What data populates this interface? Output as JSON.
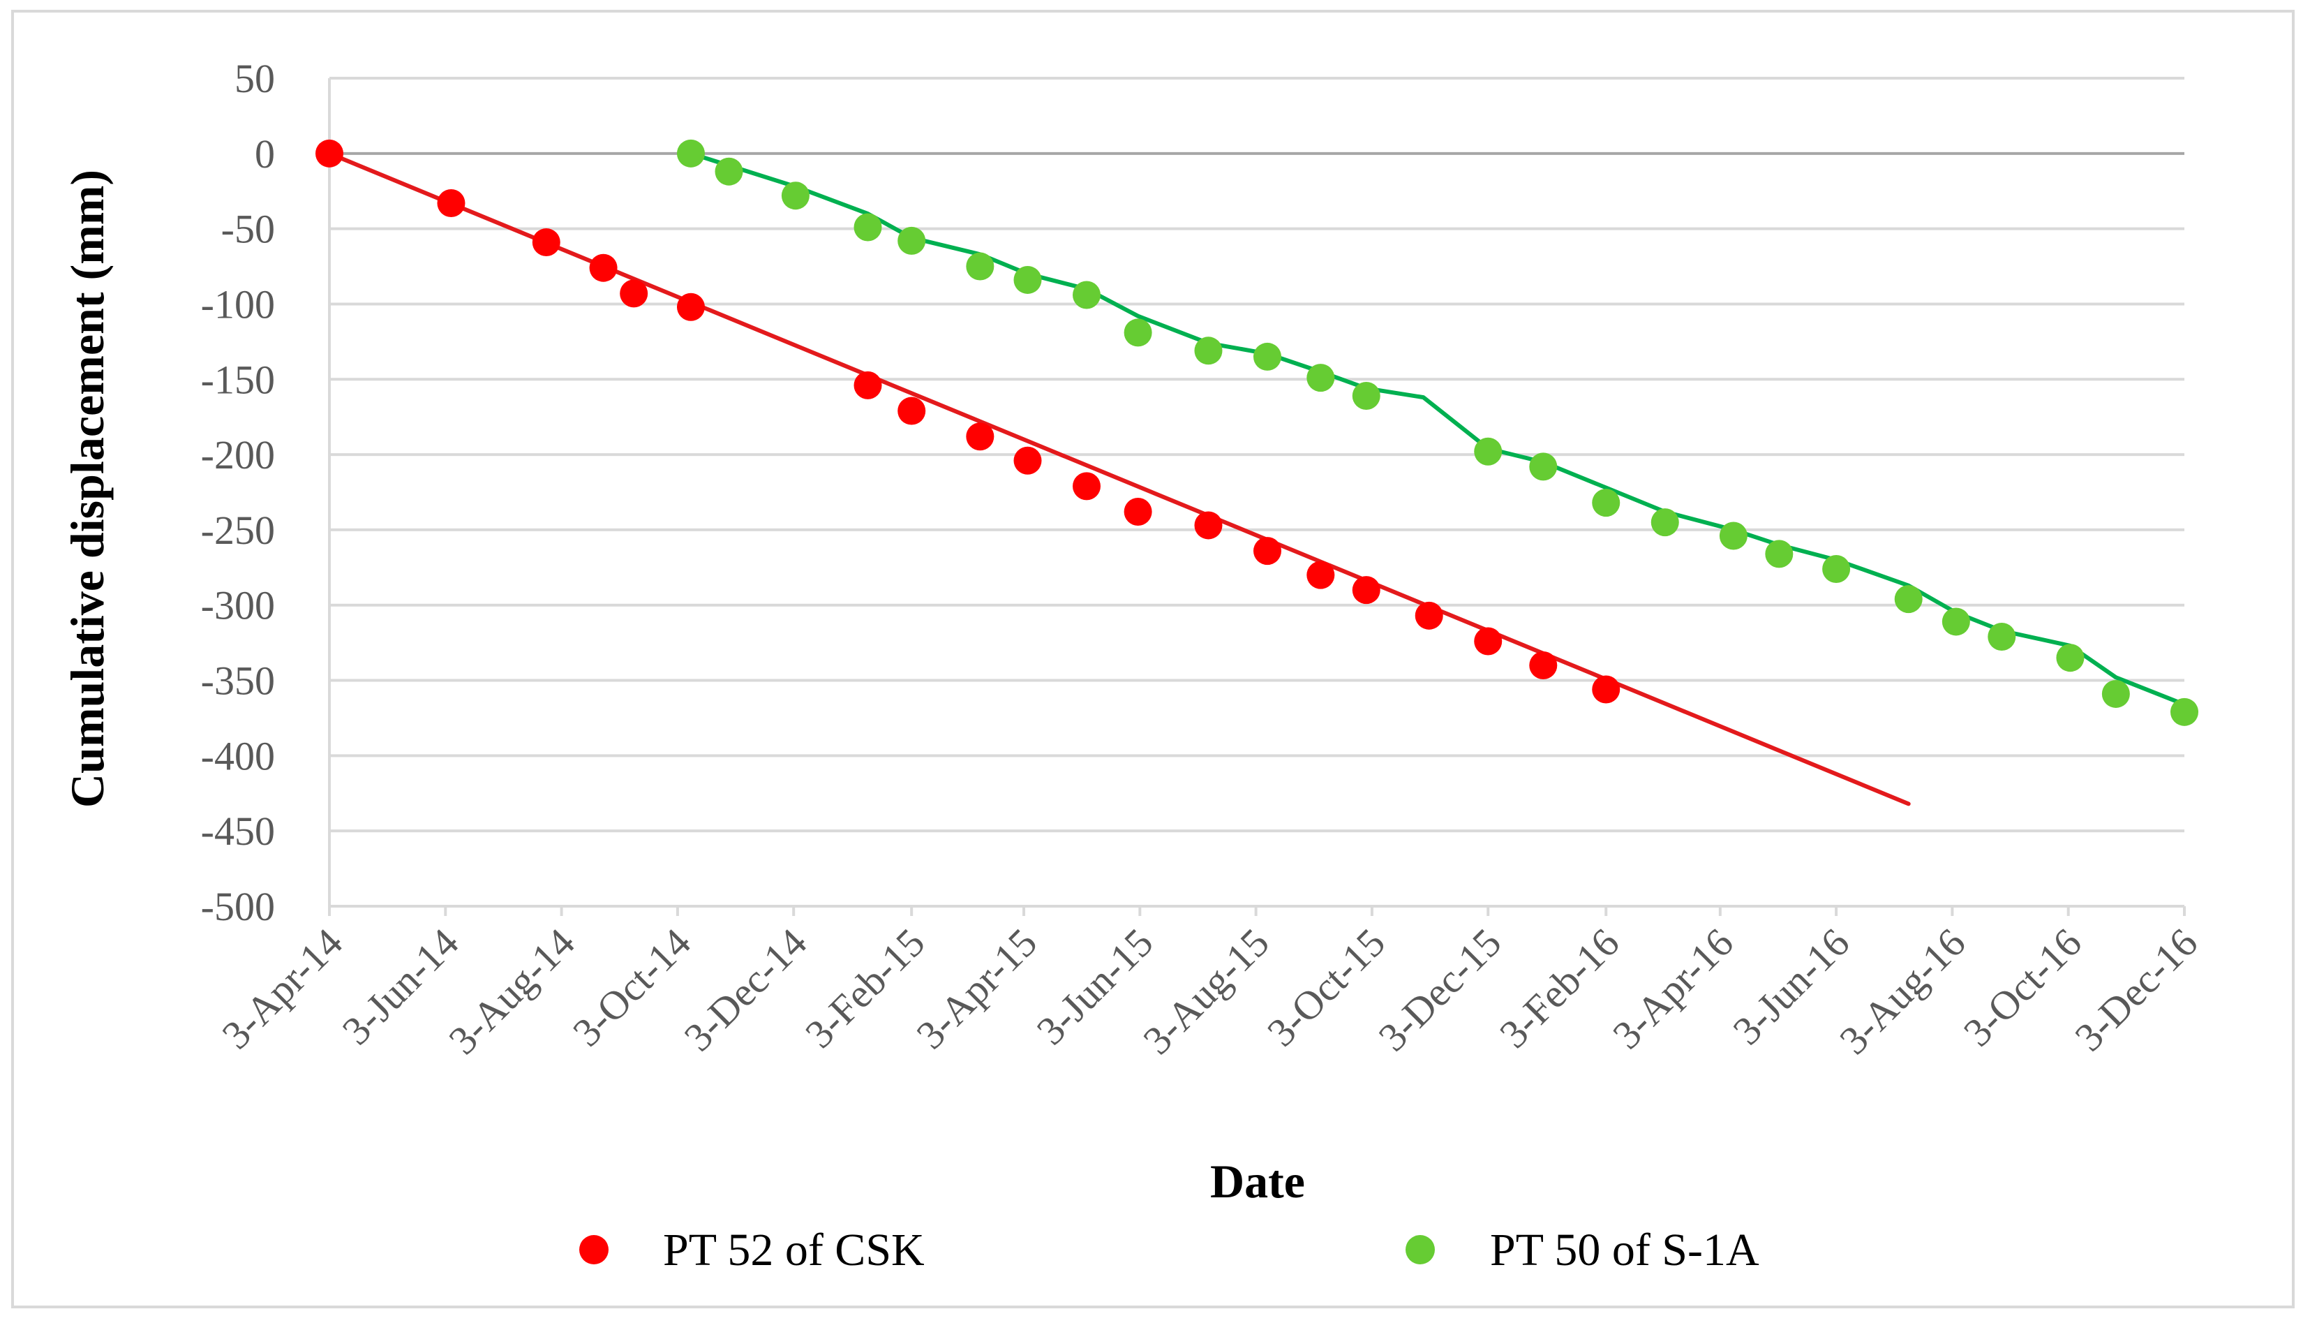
{
  "chart_data": {
    "type": "scatter",
    "title": "",
    "xlabel": "Date",
    "ylabel": "Cumulative displacement (mm)",
    "ylim": [
      -500,
      50
    ],
    "yticks": [
      "50",
      "0",
      "-50",
      "-100",
      "-150",
      "-200",
      "-250",
      "-300",
      "-350",
      "-400",
      "-450",
      "-500"
    ],
    "xlim_days": [
      0,
      975
    ],
    "xticks": [
      {
        "label": "3-Apr-14",
        "day": 0
      },
      {
        "label": "3-Jun-14",
        "day": 61
      },
      {
        "label": "3-Aug-14",
        "day": 122
      },
      {
        "label": "3-Oct-14",
        "day": 183
      },
      {
        "label": "3-Dec-14",
        "day": 244
      },
      {
        "label": "3-Feb-15",
        "day": 306
      },
      {
        "label": "3-Apr-15",
        "day": 365
      },
      {
        "label": "3-Jun-15",
        "day": 426
      },
      {
        "label": "3-Aug-15",
        "day": 487
      },
      {
        "label": "3-Oct-15",
        "day": 548
      },
      {
        "label": "3-Dec-15",
        "day": 609
      },
      {
        "label": "3-Feb-16",
        "day": 671
      },
      {
        "label": "3-Apr-16",
        "day": 731
      },
      {
        "label": "3-Jun-16",
        "day": 792
      },
      {
        "label": "3-Aug-16",
        "day": 853
      },
      {
        "label": "3-Oct-16",
        "day": 914
      },
      {
        "label": "3-Dec-16",
        "day": 975
      }
    ],
    "grid": true,
    "legend_position": "bottom",
    "series": [
      {
        "name": "PT 52 of CSK",
        "color": "#ff0000",
        "line_color": "#e31a1c",
        "points": [
          {
            "x": 0,
            "y": 0
          },
          {
            "x": 64,
            "y": -33
          },
          {
            "x": 114,
            "y": -59
          },
          {
            "x": 144,
            "y": -76
          },
          {
            "x": 160,
            "y": -93
          },
          {
            "x": 190,
            "y": -102
          },
          {
            "x": 283,
            "y": -154
          },
          {
            "x": 306,
            "y": -171
          },
          {
            "x": 342,
            "y": -188
          },
          {
            "x": 367,
            "y": -204
          },
          {
            "x": 398,
            "y": -221
          },
          {
            "x": 425,
            "y": -238
          },
          {
            "x": 462,
            "y": -247
          },
          {
            "x": 493,
            "y": -264
          },
          {
            "x": 521,
            "y": -280
          },
          {
            "x": 545,
            "y": -290
          },
          {
            "x": 578,
            "y": -307
          },
          {
            "x": 609,
            "y": -324
          },
          {
            "x": 638,
            "y": -340
          },
          {
            "x": 671,
            "y": -356
          }
        ],
        "trend": [
          {
            "x": 0,
            "y": 0
          },
          {
            "x": 830,
            "y": -432
          }
        ]
      },
      {
        "name": "PT 50 of S-1A",
        "color": "#66cc33",
        "line_color": "#00b050",
        "points": [
          {
            "x": 190,
            "y": 0
          },
          {
            "x": 210,
            "y": -12
          },
          {
            "x": 245,
            "y": -28
          },
          {
            "x": 283,
            "y": -49
          },
          {
            "x": 306,
            "y": -58
          },
          {
            "x": 342,
            "y": -75
          },
          {
            "x": 367,
            "y": -84
          },
          {
            "x": 398,
            "y": -94
          },
          {
            "x": 425,
            "y": -119
          },
          {
            "x": 462,
            "y": -131
          },
          {
            "x": 493,
            "y": -135
          },
          {
            "x": 521,
            "y": -149
          },
          {
            "x": 545,
            "y": -161
          },
          {
            "x": 609,
            "y": -198
          },
          {
            "x": 638,
            "y": -208
          },
          {
            "x": 671,
            "y": -232
          },
          {
            "x": 702,
            "y": -245
          },
          {
            "x": 738,
            "y": -254
          },
          {
            "x": 762,
            "y": -266
          },
          {
            "x": 792,
            "y": -276
          },
          {
            "x": 830,
            "y": -296
          },
          {
            "x": 855,
            "y": -311
          },
          {
            "x": 879,
            "y": -321
          },
          {
            "x": 915,
            "y": -335
          },
          {
            "x": 939,
            "y": -359
          },
          {
            "x": 975,
            "y": -371
          }
        ],
        "trend": [
          {
            "x": 190,
            "y": 0
          },
          {
            "x": 245,
            "y": -22
          },
          {
            "x": 283,
            "y": -40
          },
          {
            "x": 306,
            "y": -56
          },
          {
            "x": 342,
            "y": -67
          },
          {
            "x": 367,
            "y": -80
          },
          {
            "x": 398,
            "y": -90
          },
          {
            "x": 425,
            "y": -108
          },
          {
            "x": 462,
            "y": -126
          },
          {
            "x": 493,
            "y": -133
          },
          {
            "x": 521,
            "y": -145
          },
          {
            "x": 545,
            "y": -156
          },
          {
            "x": 575,
            "y": -162
          },
          {
            "x": 609,
            "y": -196
          },
          {
            "x": 638,
            "y": -205
          },
          {
            "x": 671,
            "y": -222
          },
          {
            "x": 702,
            "y": -238
          },
          {
            "x": 738,
            "y": -250
          },
          {
            "x": 762,
            "y": -260
          },
          {
            "x": 792,
            "y": -270
          },
          {
            "x": 830,
            "y": -287
          },
          {
            "x": 855,
            "y": -305
          },
          {
            "x": 879,
            "y": -317
          },
          {
            "x": 915,
            "y": -327
          },
          {
            "x": 939,
            "y": -348
          },
          {
            "x": 975,
            "y": -366
          }
        ]
      }
    ]
  }
}
